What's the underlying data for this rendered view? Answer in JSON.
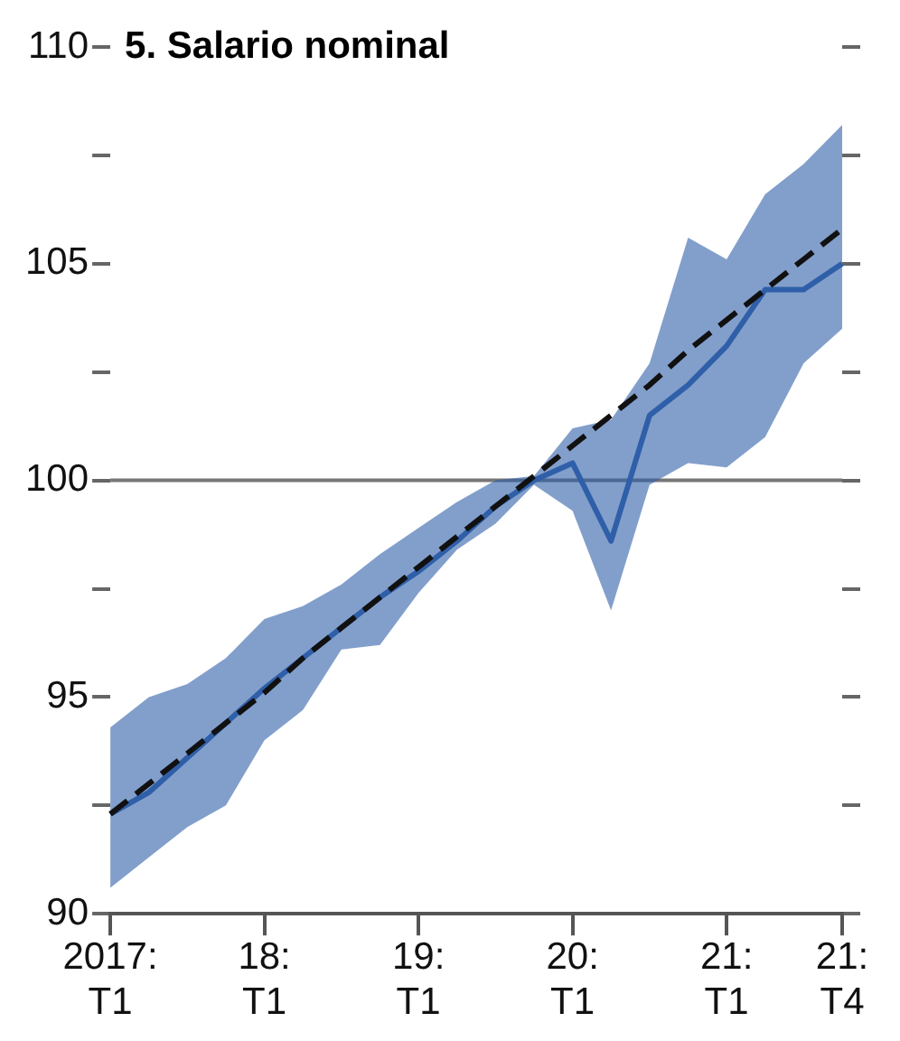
{
  "chart_data": {
    "type": "line",
    "title": "5. Salario nominal",
    "categories": [
      "2017: T1",
      null,
      null,
      null,
      "18: T1",
      null,
      null,
      null,
      "19: T1",
      null,
      null,
      null,
      "20: T1",
      null,
      null,
      null,
      "21: T1",
      null,
      null,
      "21: T4"
    ],
    "series": [
      {
        "color": "#2f5fa8",
        "values": [
          92.3,
          92.8,
          93.6,
          94.4,
          95.2,
          95.9,
          96.6,
          97.3,
          97.9,
          98.6,
          99.4,
          100.0,
          100.4,
          98.6,
          101.5,
          102.2,
          103.1,
          104.4,
          104.4,
          105.0
        ],
        "lower": [
          90.6,
          91.3,
          92.0,
          92.5,
          94.0,
          94.7,
          96.1,
          96.2,
          97.4,
          98.4,
          99.0,
          99.9,
          99.3,
          97.0,
          99.9,
          100.4,
          100.3,
          101.0,
          102.7,
          103.5
        ],
        "upper": [
          94.3,
          95.0,
          95.3,
          95.9,
          96.8,
          97.1,
          97.6,
          98.3,
          98.9,
          99.5,
          100.0,
          100.1,
          101.2,
          101.4,
          102.7,
          105.6,
          105.1,
          106.6,
          107.3,
          108.2
        ]
      },
      {
        "type": "line",
        "color": "#111111",
        "line_style": "dashed",
        "values": [
          92.3,
          93.0,
          93.7,
          94.4,
          95.1,
          95.9,
          96.6,
          97.3,
          98.0,
          98.7,
          99.4,
          100.1,
          100.8,
          101.5,
          102.2,
          103.0,
          103.7,
          104.4,
          105.1,
          105.8
        ]
      }
    ],
    "ylim": [
      90,
      110
    ],
    "yticks": [
      90,
      {
        "value": 92.5,
        "label": null
      },
      95,
      {
        "value": 97.5,
        "label": null
      },
      100,
      {
        "value": 102.5,
        "label": null
      },
      105,
      {
        "value": 107.5,
        "label": null
      },
      110
    ],
    "ref_lines": [
      {
        "axis": "y",
        "value": 100,
        "color": "#777777"
      }
    ],
    "grid": false,
    "legend": false,
    "marker": "none"
  }
}
